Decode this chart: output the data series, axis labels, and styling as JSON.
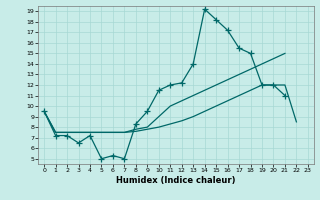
{
  "xlabel": "Humidex (Indice chaleur)",
  "bg_color": "#c8ece8",
  "grid_color": "#a8d8d4",
  "line_color": "#006868",
  "xlim": [
    -0.5,
    23.5
  ],
  "ylim": [
    4.5,
    19.5
  ],
  "xticks": [
    0,
    1,
    2,
    3,
    4,
    5,
    6,
    7,
    8,
    9,
    10,
    11,
    12,
    13,
    14,
    15,
    16,
    17,
    18,
    19,
    20,
    21,
    22,
    23
  ],
  "yticks": [
    5,
    6,
    7,
    8,
    9,
    10,
    11,
    12,
    13,
    14,
    15,
    16,
    17,
    18,
    19
  ],
  "line1_y": [
    9.5,
    7.2,
    7.2,
    6.5,
    7.2,
    5.0,
    5.3,
    5.0,
    8.3,
    9.5,
    11.5,
    12.0,
    12.2,
    14.0,
    19.2,
    18.2,
    17.2,
    15.5,
    15.0,
    12.0,
    12.0,
    11.0,
    null,
    null
  ],
  "line2_y": [
    9.5,
    7.5,
    7.5,
    7.5,
    7.5,
    7.5,
    7.5,
    7.5,
    7.8,
    8.0,
    9.0,
    10.0,
    10.5,
    11.0,
    11.5,
    12.0,
    12.5,
    13.0,
    13.5,
    14.0,
    14.5,
    15.0,
    null,
    null
  ],
  "line3_y": [
    9.5,
    7.5,
    7.5,
    7.5,
    7.5,
    7.5,
    7.5,
    7.5,
    7.6,
    7.8,
    8.0,
    8.3,
    8.6,
    9.0,
    9.5,
    10.0,
    10.5,
    11.0,
    11.5,
    12.0,
    12.0,
    12.0,
    8.5,
    null
  ]
}
